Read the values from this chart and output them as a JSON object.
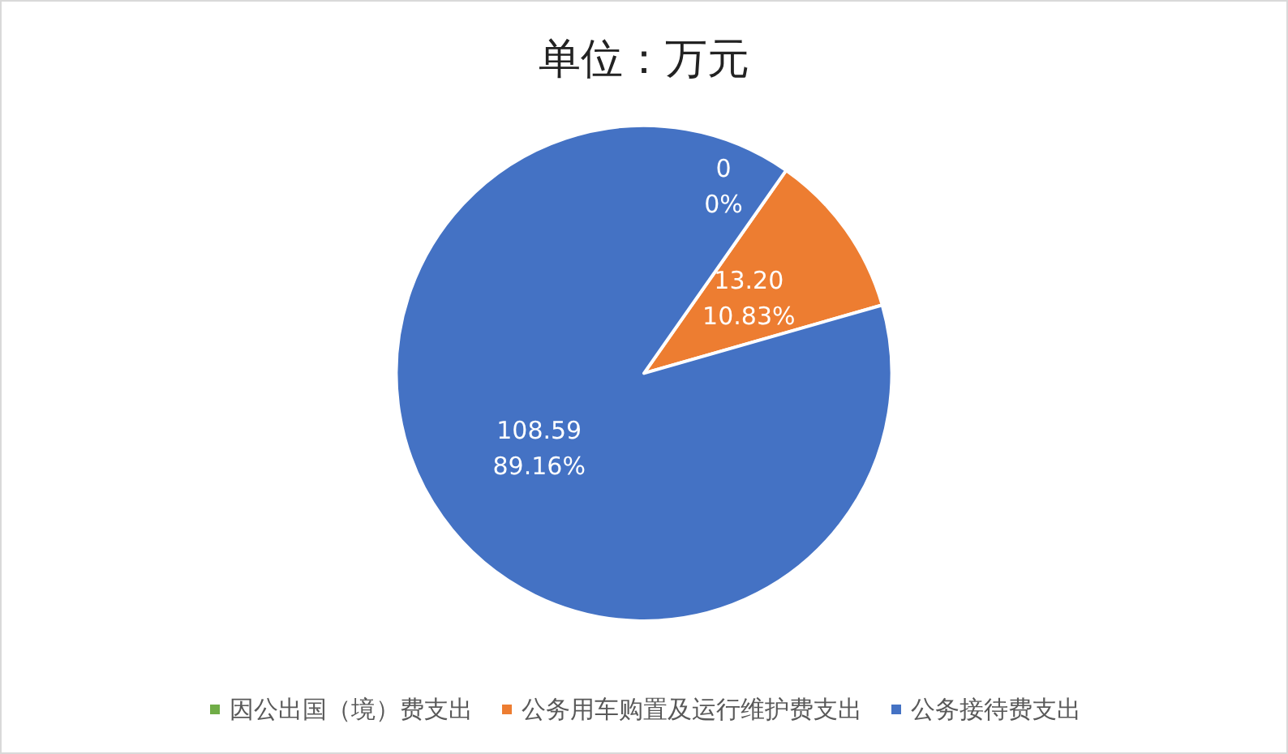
{
  "chart_data": {
    "type": "pie",
    "title": "单位：万元",
    "categories": [
      "因公出国（境）费支出",
      "公务用车购置及运行维护费支出",
      "公务接待费支出"
    ],
    "values": [
      0,
      13.2,
      108.59
    ],
    "colors": [
      "#70ad47",
      "#ed7d31",
      "#4472c4"
    ],
    "value_labels": [
      "0\n0%",
      "13.20\n10.83%",
      "108.59\n89.16%"
    ],
    "legend": "bottom"
  }
}
